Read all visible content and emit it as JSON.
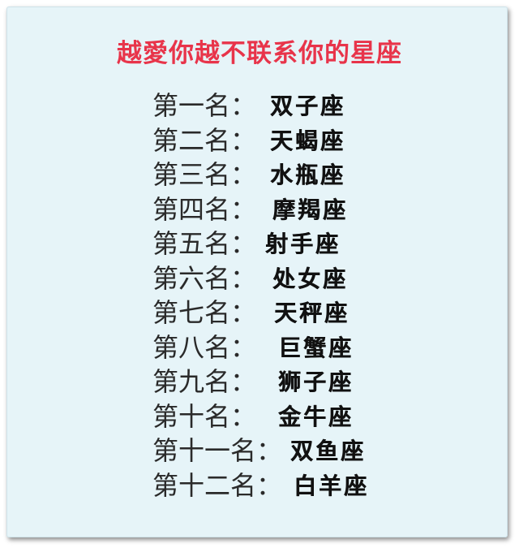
{
  "title": "越愛你越不联系你的星座",
  "rankings": [
    {
      "rank": "第一名：",
      "sign": "双子座"
    },
    {
      "rank": "第二名：",
      "sign": "天蝎座"
    },
    {
      "rank": "第三名：",
      "sign": "水瓶座"
    },
    {
      "rank": "第四名：",
      "sign": "摩羯座"
    },
    {
      "rank": "第五名：",
      "sign": "射手座"
    },
    {
      "rank": "第六名：",
      "sign": "处女座"
    },
    {
      "rank": "第七名：",
      "sign": "天秤座"
    },
    {
      "rank": "第八名：",
      "sign": "巨蟹座"
    },
    {
      "rank": "第九名：",
      "sign": "狮子座"
    },
    {
      "rank": "第十名：",
      "sign": "金牛座"
    },
    {
      "rank": "第十一名：",
      "sign": "双鱼座"
    },
    {
      "rank": "第十二名：",
      "sign": "白羊座"
    }
  ],
  "colors": {
    "title": "#e8344a",
    "background": "#e6f4f8",
    "text": "#111111"
  }
}
